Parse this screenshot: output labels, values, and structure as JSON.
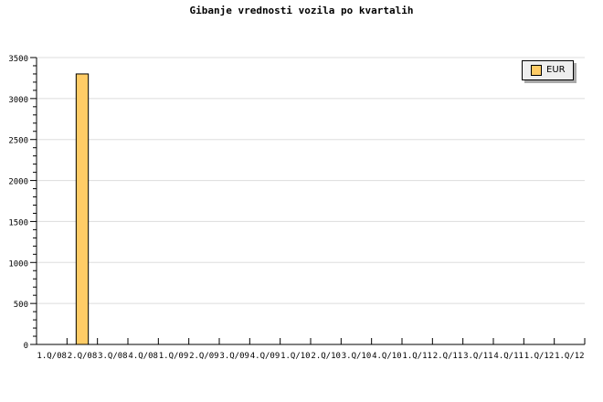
{
  "chart_data": {
    "type": "bar",
    "title": "Gibanje vrednosti vozila po kvartalih",
    "categories": [
      "1.Q/08",
      "2.Q/08",
      "3.Q/08",
      "4.Q/08",
      "1.Q/09",
      "2.Q/09",
      "3.Q/09",
      "4.Q/09",
      "1.Q/10",
      "2.Q/10",
      "3.Q/10",
      "4.Q/10",
      "1.Q/11",
      "2.Q/11",
      "3.Q/11",
      "4.Q/11",
      "1.Q/12",
      "1.Q/12"
    ],
    "series": [
      {
        "name": "EUR",
        "values": [
          0,
          3300,
          0,
          0,
          0,
          0,
          0,
          0,
          0,
          0,
          0,
          0,
          0,
          0,
          0,
          0,
          0,
          0
        ],
        "color": "#ffcc66"
      }
    ],
    "ylim": [
      0,
      3500
    ],
    "yticks": [
      0,
      500,
      1000,
      1500,
      2000,
      2500,
      3000,
      3500
    ],
    "grid": true,
    "legend": "top-right"
  }
}
